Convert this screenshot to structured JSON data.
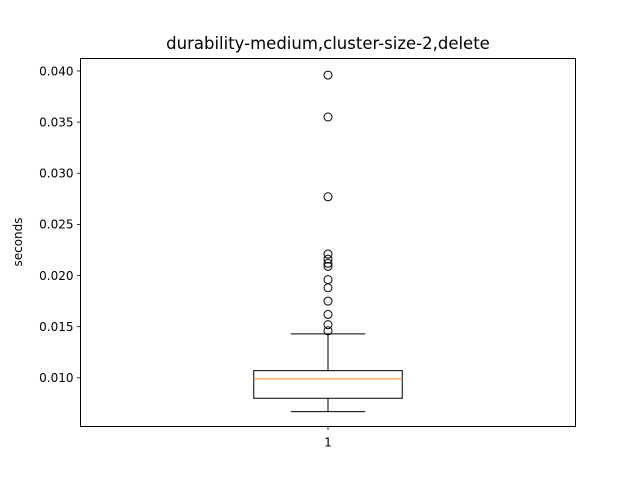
{
  "chart_data": {
    "type": "box",
    "title": "durability-medium,cluster-size-2,delete",
    "xlabel": "",
    "ylabel": "seconds",
    "categories": [
      "1"
    ],
    "ylim": [
      0.00524,
      0.04122
    ],
    "y_ticks": [
      0.01,
      0.015,
      0.02,
      0.025,
      0.03,
      0.035,
      0.04
    ],
    "y_tick_labels": [
      "0.010",
      "0.015",
      "0.020",
      "0.025",
      "0.030",
      "0.035",
      "0.040"
    ],
    "boxes": [
      {
        "category": "1",
        "whisker_low": 0.0067,
        "q1": 0.008,
        "median": 0.0099,
        "q3": 0.0107,
        "whisker_high": 0.0143,
        "outliers": [
          0.0146,
          0.0152,
          0.0162,
          0.0175,
          0.0188,
          0.0196,
          0.0209,
          0.0212,
          0.0216,
          0.0221,
          0.0277,
          0.0355,
          0.0396
        ]
      }
    ],
    "colors": {
      "median": "#ff7f0e",
      "box": "#000000",
      "outlier": "#000000"
    },
    "grid": false
  }
}
